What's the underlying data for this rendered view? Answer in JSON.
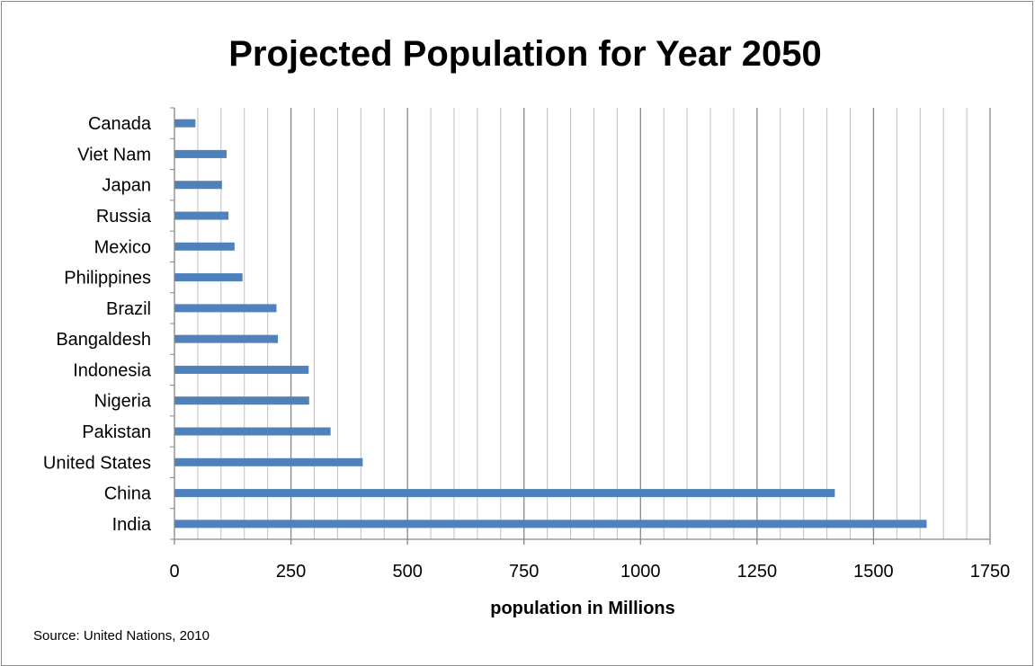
{
  "chart_data": {
    "type": "bar",
    "orientation": "horizontal",
    "title": "Projected Population for Year 2050",
    "xlabel": "population in Millions",
    "ylabel": "",
    "xlim": [
      0,
      1750
    ],
    "major_ticks": [
      0,
      250,
      500,
      750,
      1000,
      1250,
      1500,
      1750
    ],
    "minor_step": 50,
    "categories": [
      "India",
      "China",
      "United States",
      "Pakistan",
      "Nigeria",
      "Indonesia",
      "Bangaldesh",
      "Brazil",
      "Philippines",
      "Mexico",
      "Russia",
      "Japan",
      "Viet Nam",
      "Canada"
    ],
    "values": [
      1614,
      1417,
      404,
      335,
      289,
      288,
      222,
      219,
      146,
      129,
      116,
      102,
      112,
      45
    ],
    "grid": true,
    "bar_color": "#4f81bd",
    "major_grid_color": "#868686",
    "minor_grid_color": "#bfbfbf"
  },
  "footer": {
    "source": "Source: United Nations, 2010"
  }
}
